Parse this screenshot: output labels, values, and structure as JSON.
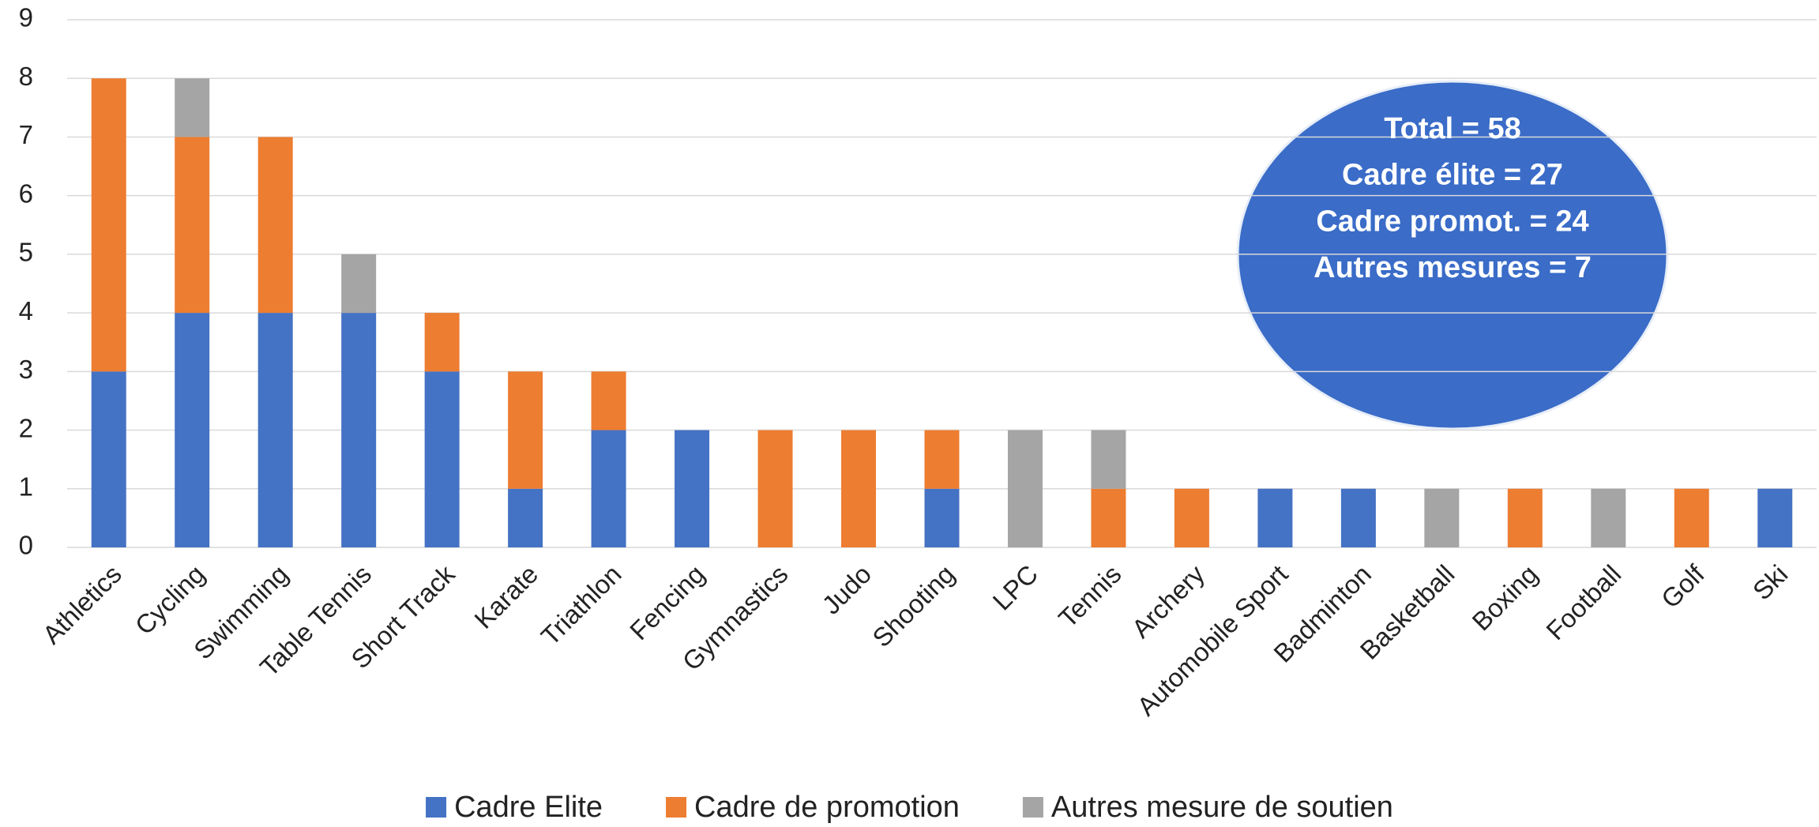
{
  "chart_data": {
    "type": "stacked_bar",
    "categories": [
      "Athletics",
      "Cycling",
      "Swimming",
      "Table Tennis",
      "Short Track",
      "Karate",
      "Triathlon",
      "Fencing",
      "Gymnastics",
      "Judo",
      "Shooting",
      "LPC",
      "Tennis",
      "Archery",
      "Automobile Sport",
      "Badminton",
      "Basketball",
      "Boxing",
      "Football",
      "Golf",
      "Ski"
    ],
    "series": [
      {
        "name": "Cadre Elite",
        "color": "#4472c4",
        "values": [
          3,
          4,
          4,
          4,
          3,
          1,
          2,
          2,
          0,
          0,
          1,
          0,
          0,
          0,
          1,
          1,
          0,
          0,
          0,
          0,
          1
        ]
      },
      {
        "name": "Cadre de promotion",
        "color": "#ed7d31",
        "values": [
          5,
          3,
          3,
          0,
          1,
          2,
          1,
          0,
          2,
          2,
          1,
          0,
          1,
          1,
          0,
          0,
          0,
          1,
          0,
          1,
          0
        ]
      },
      {
        "name": "Autres mesure de soutien",
        "color": "#a5a5a5",
        "values": [
          0,
          1,
          0,
          1,
          0,
          0,
          0,
          0,
          0,
          0,
          0,
          2,
          1,
          0,
          0,
          0,
          1,
          0,
          1,
          0,
          0
        ]
      }
    ],
    "ylim": [
      0,
      9
    ],
    "yticks": [
      0,
      1,
      2,
      3,
      4,
      5,
      6,
      7,
      8,
      9
    ],
    "grid": true,
    "annotations": [
      "Total = 58",
      "Cadre élite = 27",
      "Cadre promot. = 24",
      "Autres mesures = 7"
    ]
  }
}
